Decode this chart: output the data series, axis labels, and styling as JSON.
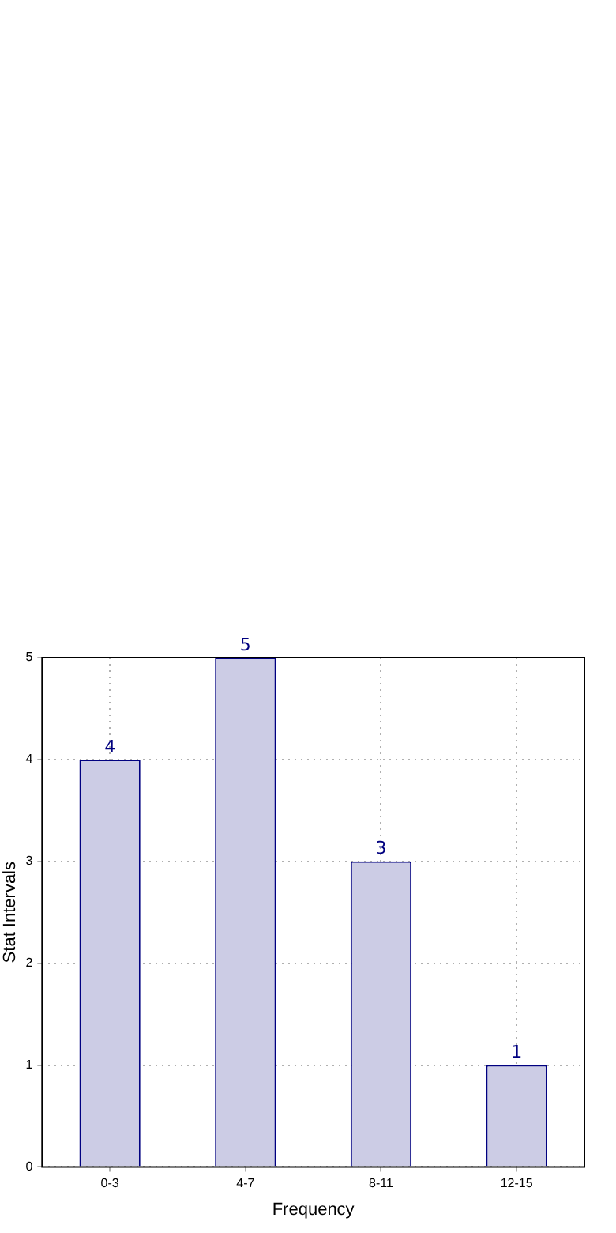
{
  "chart_data": {
    "type": "bar",
    "xlabel": "Frequency",
    "ylabel": "Stat Intervals",
    "categories": [
      "0-3",
      "4-7",
      "8-11",
      "12-15"
    ],
    "values": [
      4,
      5,
      3,
      1
    ],
    "color": "#ccccE5",
    "ylim": [
      0,
      5
    ],
    "yticks": [
      0,
      1,
      2,
      3,
      4,
      5
    ],
    "grid": true,
    "data_labels": true,
    "legend": false
  }
}
